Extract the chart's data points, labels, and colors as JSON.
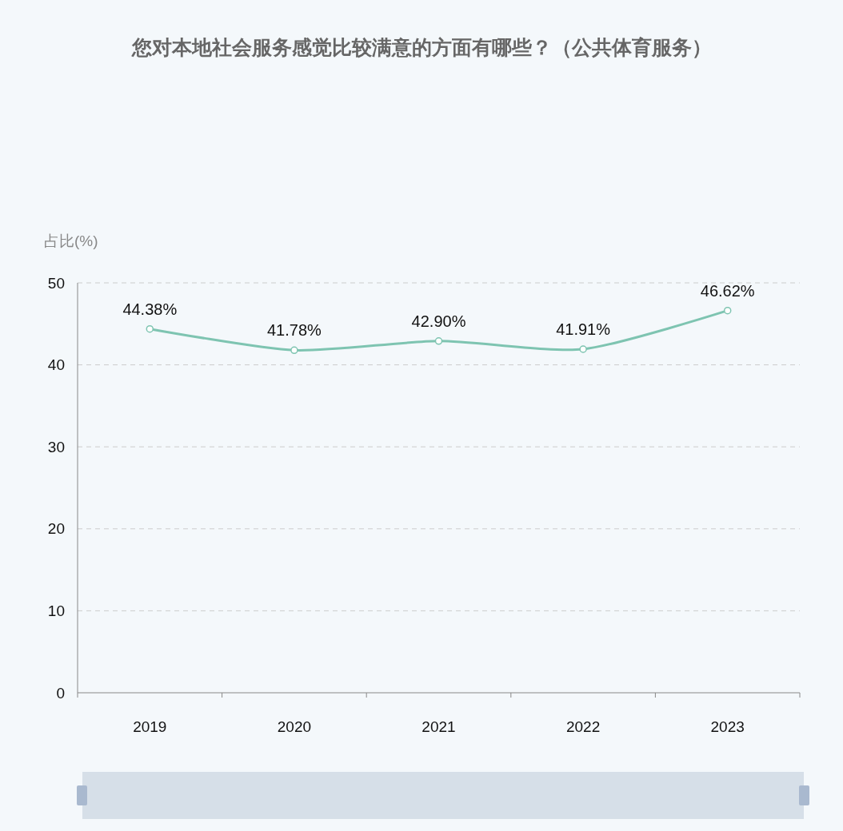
{
  "chart_data": {
    "type": "line",
    "title": "您对本地社会服务感觉比较满意的方面有哪些？（公共体育服务）",
    "ylabel": "占比(%)",
    "categories": [
      "2019",
      "2020",
      "2021",
      "2022",
      "2023"
    ],
    "series": [
      {
        "color": "#7ec4b1",
        "values": [
          44.38,
          41.78,
          42.9,
          41.91,
          46.62
        ]
      }
    ],
    "value_labels": [
      "44.38%",
      "41.78%",
      "42.90%",
      "41.91%",
      "46.62%"
    ],
    "ylim": [
      0,
      50
    ],
    "yticks": [
      0,
      10,
      20,
      30,
      40,
      50
    ],
    "grid": "y",
    "marker": "circle",
    "line_style": "solid"
  }
}
